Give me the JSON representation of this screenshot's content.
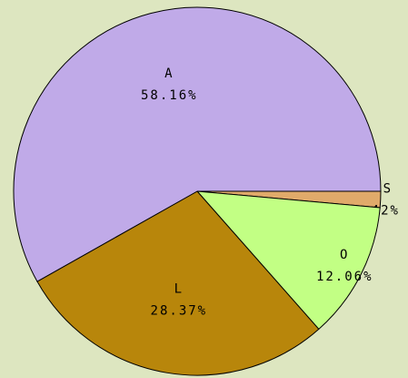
{
  "chart_data": {
    "type": "pie",
    "categories": [
      "S",
      "O",
      "L",
      "A"
    ],
    "values": [
      1.42,
      12.06,
      28.37,
      58.16
    ],
    "value_labels": [
      "1.42%",
      "12.06%",
      "28.37%",
      "58.16%"
    ],
    "colors": [
      "#e0aa6a",
      "#c2ff84",
      "#b8860b",
      "#c0aae8"
    ]
  }
}
